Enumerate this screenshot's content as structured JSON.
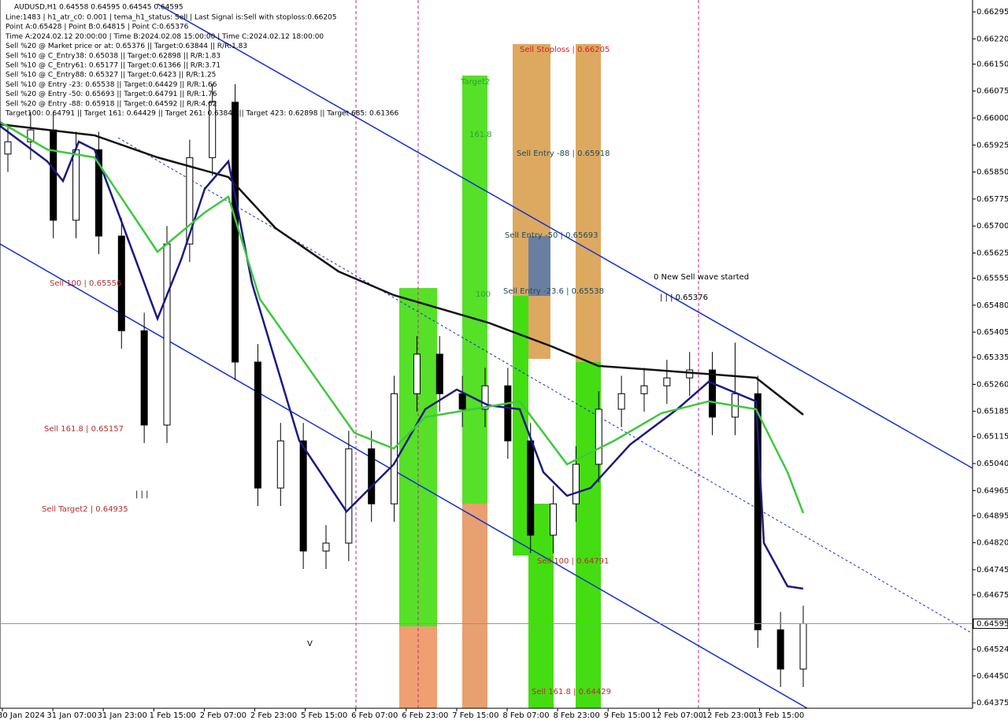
{
  "chart_data": {
    "type": "candlestick",
    "title": "AUDUSD,H1  0.64558 0.64595 0.64545 0.64595",
    "info": [
      "Line:1483 | h1_atr_c0: 0.001 | tema_h1_status: Sell | Last Signal is:Sell with stoploss:0.66205",
      "Point A:0.65428 | Point B:0.64815 | Point C:0.65376",
      "Time A:2024.02.12 20:00:00 | Time B:2024.02.08 15:00:00 | Time C:2024.02.12 18:00:00",
      "Sell %20 @ Market price or at: 0.65376 || Target:0.63844 || R/R:1.83",
      "Sell %10 @ C_Entry38: 0.65038 || Target:0.62898 || R/R:1.83",
      "Sell %10 @ C_Entry61: 0.65177 || Target:0.61366 || R/R:3.71",
      "Sell %10 @ C_Entry88: 0.65327 || Target:0.6423 || R/R:1.25",
      "Sell %10 @ Entry -23: 0.65538 || Target:0.64429 || R/R:1.66",
      "Sell %20 @ Entry -50: 0.65693 || Target:0.64791 || R/R:1.76",
      "Sell %20 @ Entry -88: 0.65918 || Target:0.64592 || R/R:4.62",
      "Target100: 0.64791 || Target 161: 0.64429 || Target 261: 0.63844 || Target 423: 0.62898 || Target 685: 0.61366"
    ],
    "annotations": [
      "Sell 100 | 0.65556",
      "Sell 161.8 | 0.65157",
      "Sell Target2 | 0.64935",
      "Sell Stoploss | 0.66205",
      "Target2",
      "161.8",
      "100",
      "Sell Entry -88 | 0.65918",
      "Sell Entry -50 | 0.65693",
      "Sell Entry -23.6 | 0.65538",
      "0 New Sell wave started",
      "| | | 0.65376",
      "Sell 100 | 0.64791",
      "Sell 161.8 | 0.64429",
      "| | |",
      "V"
    ],
    "categories": [
      "30 Jan 2024",
      "31 Jan 07:00",
      "31 Jan 23:00",
      "1 Feb 15:00",
      "2 Feb 07:00",
      "2 Feb 23:00",
      "5 Feb 15:00",
      "6 Feb 07:00",
      "6 Feb 23:00",
      "7 Feb 15:00",
      "8 Feb 07:00",
      "8 Feb 23:00",
      "9 Feb 15:00",
      "12 Feb 07:00",
      "12 Feb 23:00",
      "13 Feb 15:00"
    ],
    "open": [
      0.659,
      0.65934,
      0.65967,
      0.65716,
      0.65912,
      0.65672,
      0.65409,
      0.65147,
      0.6565,
      0.6589,
      0.66044,
      0.65322,
      0.64972,
      0.65103,
      0.64797,
      0.64819,
      0.65081,
      0.64928,
      0.65234,
      0.65344,
      0.65234,
      0.65191,
      0.65256,
      0.65103,
      0.64841,
      0.64928,
      0.65038,
      0.65191,
      0.65234,
      0.65256,
      0.65278,
      0.653,
      0.65169,
      0.65234,
      0.64578,
      0.64469
    ],
    "high": [
      0.65984,
      0.66017,
      0.66017,
      0.65962,
      0.65962,
      0.65722,
      0.65459,
      0.657,
      0.6594,
      0.66094,
      0.66094,
      0.65372,
      0.65153,
      0.65153,
      0.64869,
      0.65131,
      0.65131,
      0.65284,
      0.65394,
      0.65394,
      0.65284,
      0.65306,
      0.65306,
      0.65153,
      0.64978,
      0.65088,
      0.65241,
      0.65284,
      0.65306,
      0.65328,
      0.6535,
      0.6535,
      0.65376,
      0.65284,
      0.64628,
      0.64645
    ],
    "low": [
      0.6585,
      0.65884,
      0.65666,
      0.65666,
      0.65622,
      0.65359,
      0.65097,
      0.65097,
      0.656,
      0.6584,
      0.65272,
      0.64922,
      0.64922,
      0.64747,
      0.64747,
      0.64769,
      0.64878,
      0.64878,
      0.65184,
      0.65184,
      0.65141,
      0.65141,
      0.65053,
      0.64791,
      0.64791,
      0.64878,
      0.64988,
      0.65141,
      0.65184,
      0.65206,
      0.65228,
      0.65119,
      0.65119,
      0.64528,
      0.64419,
      0.64419
    ],
    "close": [
      0.65934,
      0.65967,
      0.65716,
      0.65912,
      0.65672,
      0.65409,
      0.65147,
      0.6565,
      0.6589,
      0.66044,
      0.65322,
      0.64972,
      0.65103,
      0.64797,
      0.64819,
      0.65081,
      0.64928,
      0.65234,
      0.65344,
      0.65234,
      0.65191,
      0.65256,
      0.65103,
      0.64841,
      0.64928,
      0.65038,
      0.65191,
      0.65234,
      0.65256,
      0.65278,
      0.653,
      0.65169,
      0.65234,
      0.64578,
      0.64469,
      0.64595
    ],
    "last_price": 0.64595,
    "ylim": [
      0.6436,
      0.66328
    ],
    "yticks": [
      0.64375,
      {
        "value": 0.6445,
        "label": "0.64450"
      },
      0.64524,
      0.64675,
      0.64745,
      {
        "value": 0.6482,
        "label": "0.64820"
      },
      0.64895,
      0.64965,
      {
        "value": 0.6504,
        "label": "0.65040"
      },
      0.65115,
      0.65185,
      {
        "value": 0.6526,
        "label": "0.65260"
      },
      0.65335,
      0.65405,
      {
        "value": 0.6548,
        "label": "0.65480"
      },
      0.65555,
      0.65625,
      {
        "value": 0.657,
        "label": "0.65700"
      },
      0.65775,
      {
        "value": 0.6585,
        "label": "0.65850"
      },
      0.65925,
      {
        "value": 0.66,
        "label": "0.66000"
      },
      0.66075,
      {
        "value": 0.6615,
        "label": "0.66150"
      },
      {
        "value": 0.6622,
        "label": "0.66220"
      },
      0.66295
    ]
  }
}
